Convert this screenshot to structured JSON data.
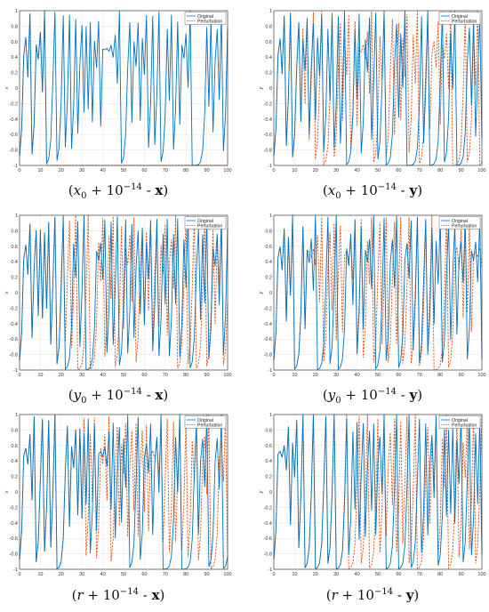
{
  "colors": {
    "original": "#0072BD",
    "perturbation": "#D95319",
    "grid": "#e6e6e6",
    "axis": "#262626"
  },
  "chart_data": [
    {
      "type": "line",
      "panel": "a",
      "ylabel": "x",
      "caption": {
        "var": "x",
        "sub": "0",
        "pow": "−14",
        "comp": "x"
      },
      "xlim": [
        0,
        100
      ],
      "ylim": [
        -1,
        1
      ],
      "xticks": [
        0,
        10,
        20,
        30,
        40,
        50,
        60,
        70,
        80,
        90,
        100
      ],
      "yticks": [
        -1,
        -0.8,
        -0.6,
        -0.4,
        -0.2,
        0,
        0.2,
        0.4,
        0.6,
        0.8,
        1
      ],
      "ytick_labels": [
        "-1",
        "-0.8",
        "-0.6",
        "-0.4",
        "-0.2",
        "0",
        "0.2",
        "0.4",
        "0.6",
        "0.8",
        "1"
      ],
      "grid": true,
      "legend_position": "top-right",
      "divergence_x": 12,
      "seed": 11,
      "series": [
        {
          "name": "Original",
          "style": "solid"
        },
        {
          "name": "Perturbation",
          "style": "dashed"
        }
      ]
    },
    {
      "type": "line",
      "panel": "b",
      "ylabel": "y",
      "caption": {
        "var": "x",
        "sub": "0",
        "pow": "−14",
        "comp": "y"
      },
      "xlim": [
        0,
        100
      ],
      "ylim": [
        -1,
        1
      ],
      "xticks": [
        0,
        10,
        20,
        30,
        40,
        50,
        60,
        70,
        80,
        90,
        100
      ],
      "yticks": [
        -1,
        -0.8,
        -0.6,
        -0.4,
        -0.2,
        0,
        0.2,
        0.4,
        0.6,
        0.8,
        1
      ],
      "ytick_labels": [
        "-1",
        "-0.8",
        "-0.6",
        "-0.4",
        "-0.2",
        "0",
        "0.2",
        "0.4",
        "0.6",
        "0.8",
        "1"
      ],
      "grid": true,
      "legend_position": "top-right",
      "divergence_x": 14,
      "seed": 23,
      "series": [
        {
          "name": "Original",
          "style": "solid"
        },
        {
          "name": "Perturbation",
          "style": "dashed"
        }
      ]
    },
    {
      "type": "line",
      "panel": "c",
      "ylabel": "x",
      "caption": {
        "var": "y",
        "sub": "0",
        "pow": "−14",
        "comp": "x"
      },
      "xlim": [
        0,
        100
      ],
      "ylim": [
        -1,
        1
      ],
      "xticks": [
        0,
        10,
        20,
        30,
        40,
        50,
        60,
        70,
        80,
        90,
        100
      ],
      "yticks": [
        -1,
        -0.8,
        -0.6,
        -0.4,
        -0.2,
        0,
        0.2,
        0.4,
        0.6,
        0.8,
        1
      ],
      "ytick_labels": [
        "-1",
        "-0.8",
        "-0.6",
        "-0.4",
        "-0.2",
        "0",
        "0.2",
        "0.4",
        "0.6",
        "0.8",
        "1"
      ],
      "grid": true,
      "legend_position": "top-right",
      "divergence_x": 20,
      "seed": 37,
      "series": [
        {
          "name": "Original",
          "style": "solid"
        },
        {
          "name": "Perturbation",
          "style": "dashed"
        }
      ]
    },
    {
      "type": "line",
      "panel": "d",
      "ylabel": "y",
      "caption": {
        "var": "y",
        "sub": "0",
        "pow": "−14",
        "comp": "y"
      },
      "xlim": [
        0,
        100
      ],
      "ylim": [
        -1,
        1
      ],
      "xticks": [
        0,
        10,
        20,
        30,
        40,
        50,
        60,
        70,
        80,
        90,
        100
      ],
      "yticks": [
        -1,
        -0.8,
        -0.6,
        -0.4,
        -0.2,
        0,
        0.2,
        0.4,
        0.6,
        0.8,
        1
      ],
      "ytick_labels": [
        "-1",
        "-0.8",
        "-0.6",
        "-0.4",
        "-0.2",
        "0",
        "0.2",
        "0.4",
        "0.6",
        "0.8",
        "1"
      ],
      "grid": true,
      "legend_position": "top-right",
      "divergence_x": 17,
      "seed": 53,
      "series": [
        {
          "name": "Original",
          "style": "solid"
        },
        {
          "name": "Perturbation",
          "style": "dashed"
        }
      ]
    },
    {
      "type": "line",
      "panel": "e",
      "ylabel": "x",
      "caption": {
        "var": "r",
        "sub": "",
        "pow": "−14",
        "comp": "x"
      },
      "xlim": [
        0,
        100
      ],
      "ylim": [
        -1,
        1
      ],
      "xticks": [
        0,
        10,
        20,
        30,
        40,
        50,
        60,
        70,
        80,
        90,
        100
      ],
      "yticks": [
        -1,
        -0.8,
        -0.6,
        -0.4,
        -0.2,
        0,
        0.2,
        0.4,
        0.6,
        0.8,
        1
      ],
      "ytick_labels": [
        "-1",
        "-0.8",
        "-0.6",
        "-0.4",
        "-0.2",
        "0",
        "0.2",
        "0.4",
        "0.6",
        "0.8",
        "1"
      ],
      "grid": true,
      "legend_position": "top-right",
      "divergence_x": 31,
      "seed": 71,
      "series": [
        {
          "name": "Original",
          "style": "solid"
        },
        {
          "name": "Perturbation",
          "style": "dashed"
        }
      ]
    },
    {
      "type": "line",
      "panel": "f",
      "ylabel": "y",
      "caption": {
        "var": "r",
        "sub": "",
        "pow": "−14",
        "comp": "y"
      },
      "xlim": [
        0,
        100
      ],
      "ylim": [
        -1,
        1
      ],
      "xticks": [
        0,
        10,
        20,
        30,
        40,
        50,
        60,
        70,
        80,
        90,
        100
      ],
      "yticks": [
        -1,
        -0.8,
        -0.6,
        -0.4,
        -0.2,
        0,
        0.2,
        0.4,
        0.6,
        0.8,
        1
      ],
      "ytick_labels": [
        "-1",
        "-0.8",
        "-0.6",
        "-0.4",
        "-0.2",
        "0",
        "0.2",
        "0.4",
        "0.6",
        "0.8",
        "1"
      ],
      "grid": true,
      "legend_position": "top-right",
      "divergence_x": 34,
      "seed": 97,
      "series": [
        {
          "name": "Original",
          "style": "solid"
        },
        {
          "name": "Perturbation",
          "style": "dashed"
        }
      ]
    }
  ]
}
